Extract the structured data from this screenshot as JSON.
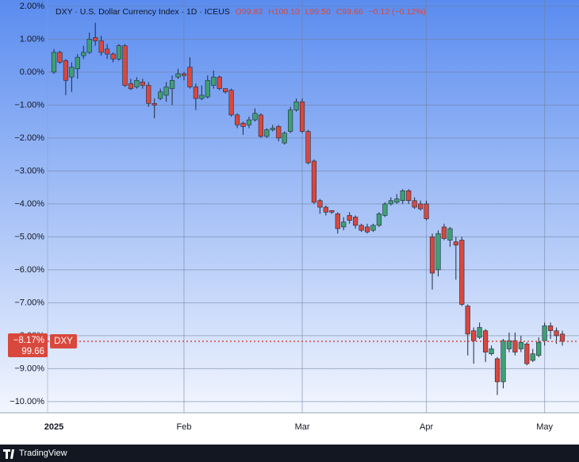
{
  "chart_data": {
    "type": "candlestick",
    "title": "DXY · U.S. Dollar Currency Index · 1D · ICEUS",
    "ohlc_header": [
      "O99.83",
      "H100.10",
      "L99.50",
      "C99.66",
      "−0.12 (−0.12%)"
    ],
    "categories": [
      "2025",
      null,
      null,
      null,
      null,
      null,
      null,
      null,
      null,
      null,
      null,
      null,
      null,
      null,
      null,
      null,
      null,
      null,
      null,
      null,
      null,
      null,
      "Feb",
      null,
      null,
      null,
      null,
      null,
      null,
      null,
      null,
      null,
      null,
      null,
      null,
      null,
      null,
      null,
      null,
      null,
      null,
      null,
      "Mar",
      null,
      null,
      null,
      null,
      null,
      null,
      null,
      null,
      null,
      null,
      null,
      null,
      null,
      null,
      null,
      null,
      null,
      null,
      null,
      null,
      "Apr",
      null,
      null,
      null,
      null,
      null,
      null,
      null,
      null,
      null,
      null,
      null,
      null,
      null,
      null,
      null,
      null,
      null,
      null,
      null,
      "May",
      null,
      null,
      null
    ],
    "open": [
      0.0,
      0.6,
      0.35,
      -0.15,
      0.1,
      0.5,
      0.6,
      1.05,
      0.95,
      0.7,
      0.55,
      0.4,
      0.8,
      -0.35,
      -0.45,
      -0.3,
      -0.4,
      -0.95,
      -0.8,
      -0.7,
      -0.5,
      -0.15,
      -0.05,
      0.15,
      -0.45,
      -0.8,
      -0.75,
      -0.4,
      -0.15,
      -0.5,
      -0.55,
      -1.3,
      -1.55,
      -1.6,
      -1.45,
      -1.3,
      -1.95,
      -1.75,
      -1.65,
      -2.15,
      -1.8,
      -1.15,
      -0.9,
      -1.8,
      -2.7,
      -3.9,
      -4.1,
      -4.2,
      -4.3,
      -4.7,
      -4.35,
      -4.4,
      -4.65,
      -4.7,
      -4.8,
      -4.65,
      -4.35,
      -4.0,
      -3.95,
      -3.9,
      -3.6,
      -3.9,
      -4.0,
      -4.0,
      -5.0,
      -6.0,
      -4.7,
      -5.1,
      -5.15,
      -5.1,
      -7.1,
      -7.85,
      -8.05,
      -7.85,
      -8.55,
      -8.7,
      -9.4,
      -8.4,
      -8.15,
      -8.4,
      -8.25,
      -8.75,
      -8.6,
      -8.15,
      -7.7,
      -7.85,
      -7.95
    ],
    "high": [
      0.7,
      0.65,
      0.4,
      0.3,
      0.55,
      0.8,
      1.2,
      1.5,
      1.1,
      0.85,
      0.6,
      0.85,
      0.85,
      -0.2,
      -0.15,
      -0.2,
      -0.3,
      -0.8,
      -0.5,
      -0.3,
      -0.1,
      0.1,
      0.0,
      0.45,
      -0.35,
      -0.4,
      -0.1,
      0.05,
      -0.1,
      -0.5,
      -0.5,
      -1.25,
      -1.5,
      -1.35,
      -1.1,
      -1.25,
      -1.7,
      -1.6,
      -1.6,
      -1.8,
      -1.05,
      -0.8,
      -0.8,
      -1.75,
      -2.65,
      -3.85,
      -4.05,
      -4.2,
      -4.25,
      -4.4,
      -4.25,
      -4.35,
      -4.6,
      -4.6,
      -4.6,
      -4.25,
      -3.95,
      -3.8,
      -3.7,
      -3.55,
      -3.55,
      -3.8,
      -3.9,
      -3.9,
      -4.9,
      -4.8,
      -4.6,
      -4.7,
      -5.0,
      -5.0,
      -7.05,
      -7.75,
      -7.6,
      -7.8,
      -8.3,
      -8.65,
      -8.1,
      -7.9,
      -7.9,
      -8.0,
      -8.2,
      -8.4,
      -8.05,
      -7.6,
      -7.6,
      -7.75,
      -7.85
    ],
    "low": [
      -0.05,
      0.25,
      -0.7,
      -0.6,
      -0.2,
      0.4,
      0.55,
      0.8,
      0.5,
      0.4,
      0.3,
      0.35,
      -0.45,
      -0.55,
      -0.5,
      -0.5,
      -1.05,
      -1.4,
      -0.85,
      -0.9,
      -1.0,
      -0.2,
      -0.25,
      -0.5,
      -1.15,
      -0.85,
      -0.8,
      -0.5,
      -0.55,
      -0.65,
      -1.35,
      -1.7,
      -1.9,
      -1.7,
      -1.5,
      -2.0,
      -2.0,
      -1.8,
      -2.1,
      -2.2,
      -1.85,
      -1.2,
      -1.85,
      -2.8,
      -4.0,
      -4.3,
      -4.35,
      -4.3,
      -4.9,
      -4.8,
      -4.6,
      -4.75,
      -4.85,
      -4.9,
      -4.85,
      -4.7,
      -4.4,
      -4.05,
      -4.0,
      -4.0,
      -4.0,
      -4.15,
      -4.2,
      -4.5,
      -6.6,
      -6.2,
      -5.1,
      -5.3,
      -6.3,
      -7.1,
      -8.6,
      -8.85,
      -8.1,
      -8.8,
      -8.6,
      -9.8,
      -9.6,
      -8.5,
      -8.6,
      -8.5,
      -8.9,
      -8.8,
      -8.65,
      -8.3,
      -8.1,
      -8.25,
      -8.3
    ],
    "close": [
      0.6,
      0.3,
      -0.25,
      0.15,
      0.45,
      0.6,
      1.0,
      0.95,
      0.6,
      0.55,
      0.4,
      0.8,
      -0.4,
      -0.5,
      -0.25,
      -0.4,
      -0.95,
      -1.0,
      -0.6,
      -0.45,
      -0.25,
      -0.05,
      -0.1,
      -0.45,
      -0.8,
      -0.7,
      -0.25,
      -0.15,
      -0.5,
      -0.6,
      -1.3,
      -1.6,
      -1.65,
      -1.45,
      -1.25,
      -1.95,
      -1.75,
      -1.7,
      -2.0,
      -1.85,
      -1.15,
      -0.9,
      -1.8,
      -2.75,
      -3.95,
      -4.1,
      -4.25,
      -4.25,
      -4.75,
      -4.55,
      -4.5,
      -4.65,
      -4.8,
      -4.85,
      -4.65,
      -4.3,
      -4.0,
      -3.9,
      -3.85,
      -3.6,
      -3.9,
      -4.1,
      -4.15,
      -4.45,
      -6.1,
      -4.9,
      -5.05,
      -4.75,
      -5.25,
      -7.05,
      -7.95,
      -8.15,
      -7.75,
      -8.5,
      -8.4,
      -9.4,
      -8.15,
      -8.15,
      -8.5,
      -8.2,
      -8.85,
      -8.55,
      -8.2,
      -7.7,
      -7.85,
      -8.0,
      -8.17
    ],
    "up_color": "#3f9f75",
    "down_color": "#d9483d",
    "ylim": [
      -10.34,
      2.19
    ],
    "yticks": [
      {
        "value": 2,
        "label": "2.00%"
      },
      {
        "value": 1,
        "label": "1.00%"
      },
      {
        "value": 0,
        "label": "0.00%"
      },
      {
        "value": -1,
        "label": "−1.00%"
      },
      {
        "value": -2,
        "label": "−2.00%"
      },
      {
        "value": -3,
        "label": "−3.00%"
      },
      {
        "value": -4,
        "label": "−4.00%"
      },
      {
        "value": -5,
        "label": "−5.00%"
      },
      {
        "value": -6,
        "label": "−6.00%"
      },
      {
        "value": -7,
        "label": "−7.00%"
      },
      {
        "value": -8,
        "label": "−8.00%"
      },
      {
        "value": -9,
        "label": "−9.00%"
      },
      {
        "value": -10,
        "label": "−10.00%"
      }
    ],
    "grid": true,
    "price_label": {
      "value": -8.17,
      "label": "−8.17%"
    },
    "price": "99.66",
    "symbol": "DXY"
  },
  "footer": {
    "brand": "TradingView"
  }
}
